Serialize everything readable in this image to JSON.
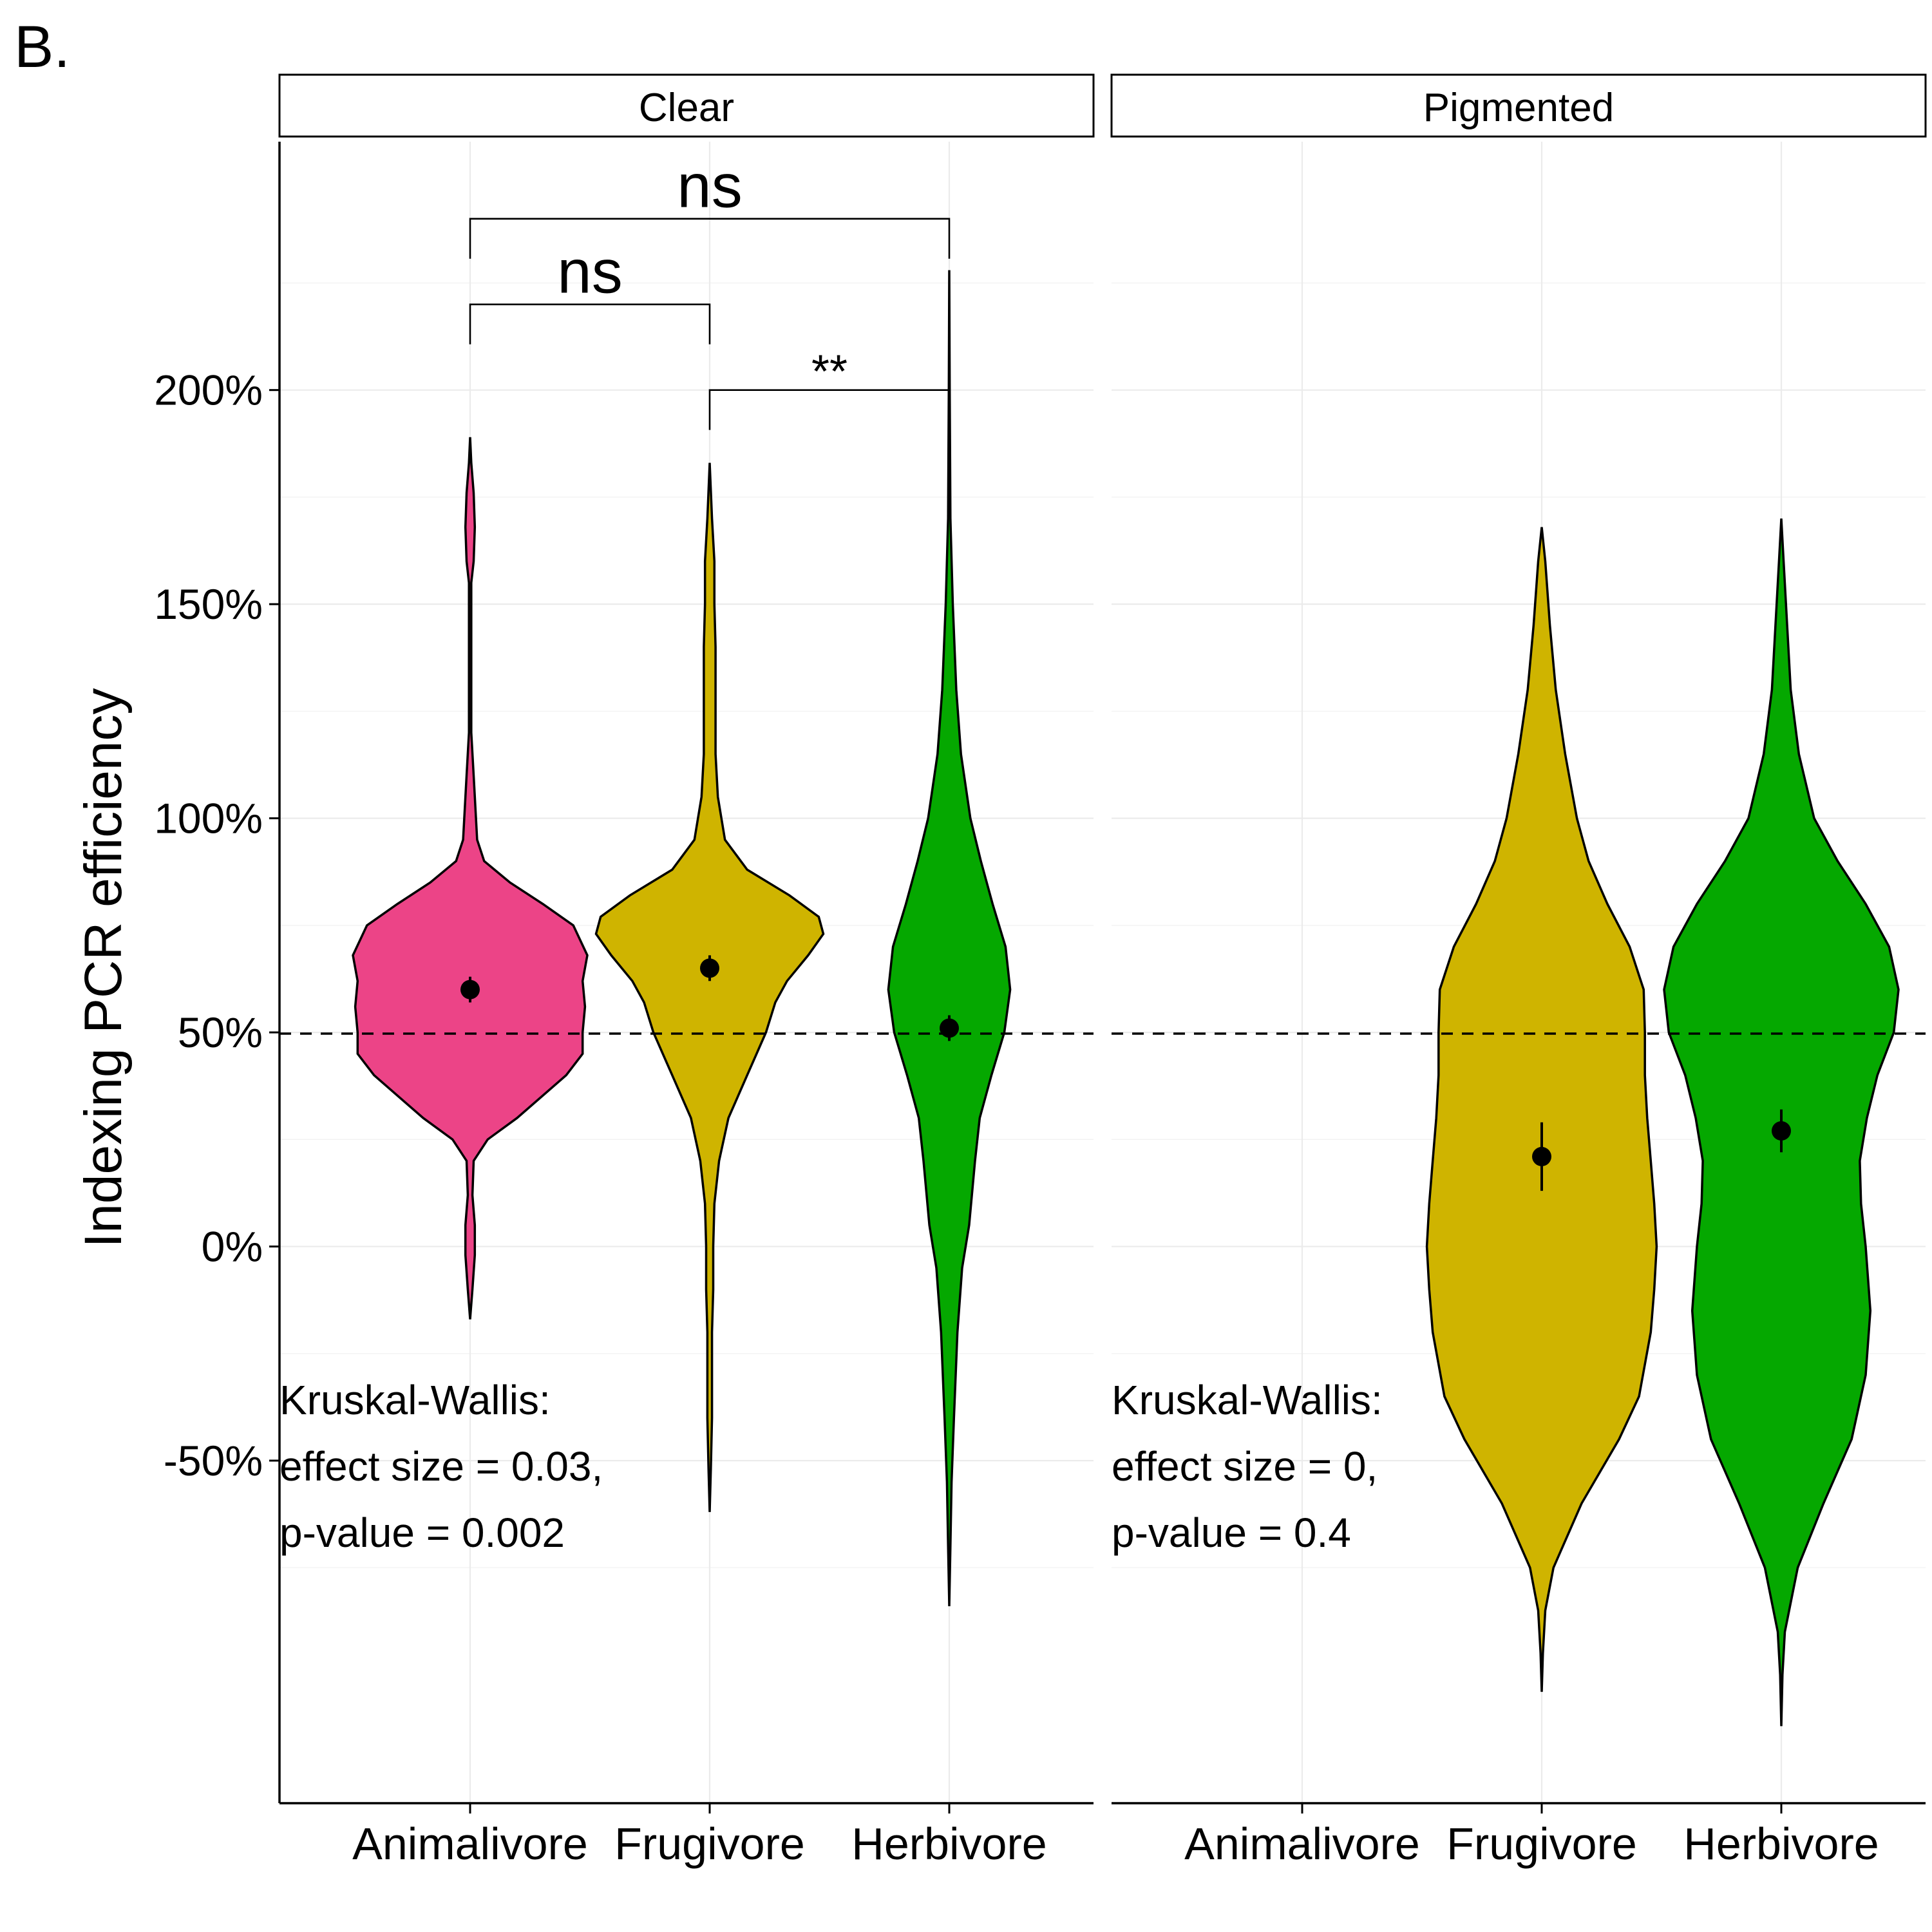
{
  "panel_label": "B.",
  "colors": {
    "Animalivore": "#EC4487",
    "Frugivore": "#CFB400",
    "Herbivore": "#05A800",
    "reference_line": "#000000"
  },
  "chart_data": {
    "type": "violin",
    "ylabel": "Indexing PCR efficiency",
    "xlabel": "",
    "y_unit": "%",
    "yticks": [
      -50,
      0,
      50,
      100,
      150,
      200
    ],
    "ytick_labels": [
      "-50%",
      "0%",
      "50%",
      "100%",
      "150%",
      "200%"
    ],
    "ylim": [
      -130,
      258
    ],
    "reference_line_y": 50,
    "grid": true,
    "categories": [
      "Animalivore",
      "Frugivore",
      "Herbivore"
    ],
    "facets": [
      {
        "strip": "Clear",
        "stats": [
          "Kruskal-Wallis:",
          "effect size = 0.03,",
          "p-value = 0.002"
        ],
        "comparisons": [
          {
            "from": "Animalivore",
            "to": "Frugivore",
            "label": "ns",
            "y": 220
          },
          {
            "from": "Frugivore",
            "to": "Herbivore",
            "label": "**",
            "y": 200
          },
          {
            "from": "Animalivore",
            "to": "Herbivore",
            "label": "ns",
            "y": 240
          }
        ],
        "violins": [
          {
            "group": "Animalivore",
            "mean": 60,
            "ci": [
              57,
              63
            ],
            "profile": [
              [
                -17,
                0
              ],
              [
                -10,
                0.02
              ],
              [
                -2,
                0.04
              ],
              [
                5,
                0.04
              ],
              [
                12,
                0.02
              ],
              [
                20,
                0.03
              ],
              [
                25,
                0.15
              ],
              [
                30,
                0.4
              ],
              [
                40,
                0.82
              ],
              [
                45,
                0.96
              ],
              [
                50,
                0.96
              ],
              [
                56,
                0.98
              ],
              [
                62,
                0.96
              ],
              [
                68,
                1.0
              ],
              [
                75,
                0.88
              ],
              [
                80,
                0.62
              ],
              [
                85,
                0.34
              ],
              [
                90,
                0.12
              ],
              [
                95,
                0.06
              ],
              [
                100,
                0.05
              ],
              [
                110,
                0.03
              ],
              [
                120,
                0.01
              ],
              [
                140,
                0.01
              ],
              [
                155,
                0.01
              ],
              [
                160,
                0.03
              ],
              [
                168,
                0.04
              ],
              [
                176,
                0.03
              ],
              [
                183,
                0.01
              ],
              [
                189,
                0
              ]
            ]
          },
          {
            "group": "Frugivore",
            "mean": 65,
            "ci": [
              62,
              68
            ],
            "profile": [
              [
                -62,
                0
              ],
              [
                -52,
                0.01
              ],
              [
                -40,
                0.02
              ],
              [
                -30,
                0.02
              ],
              [
                -20,
                0.02
              ],
              [
                -10,
                0.03
              ],
              [
                0,
                0.03
              ],
              [
                10,
                0.04
              ],
              [
                20,
                0.08
              ],
              [
                30,
                0.16
              ],
              [
                40,
                0.32
              ],
              [
                50,
                0.48
              ],
              [
                57,
                0.56
              ],
              [
                62,
                0.66
              ],
              [
                68,
                0.84
              ],
              [
                73,
                0.97
              ],
              [
                77,
                0.93
              ],
              [
                82,
                0.68
              ],
              [
                88,
                0.32
              ],
              [
                95,
                0.13
              ],
              [
                105,
                0.07
              ],
              [
                115,
                0.05
              ],
              [
                125,
                0.05
              ],
              [
                140,
                0.05
              ],
              [
                150,
                0.04
              ],
              [
                160,
                0.04
              ],
              [
                170,
                0.02
              ],
              [
                183,
                0
              ]
            ]
          },
          {
            "group": "Herbivore",
            "mean": 51,
            "ci": [
              48,
              54
            ],
            "profile": [
              [
                -84,
                0
              ],
              [
                -70,
                0.01
              ],
              [
                -55,
                0.02
              ],
              [
                -40,
                0.04
              ],
              [
                -20,
                0.07
              ],
              [
                -5,
                0.11
              ],
              [
                5,
                0.17
              ],
              [
                20,
                0.22
              ],
              [
                30,
                0.26
              ],
              [
                40,
                0.36
              ],
              [
                50,
                0.47
              ],
              [
                60,
                0.52
              ],
              [
                70,
                0.48
              ],
              [
                80,
                0.37
              ],
              [
                90,
                0.27
              ],
              [
                100,
                0.18
              ],
              [
                115,
                0.1
              ],
              [
                130,
                0.06
              ],
              [
                150,
                0.03
              ],
              [
                170,
                0.01
              ],
              [
                200,
                0.004
              ],
              [
                228,
                0
              ]
            ]
          }
        ]
      },
      {
        "strip": "Pigmented",
        "stats": [
          "Kruskal-Wallis:",
          "effect size = 0,",
          "p-value = 0.4"
        ],
        "comparisons": [],
        "violins": [
          {
            "group": "Frugivore",
            "mean": 21,
            "ci": [
              13,
              29
            ],
            "profile": [
              [
                -104,
                0
              ],
              [
                -95,
                0.01
              ],
              [
                -85,
                0.03
              ],
              [
                -75,
                0.1
              ],
              [
                -60,
                0.34
              ],
              [
                -45,
                0.66
              ],
              [
                -35,
                0.83
              ],
              [
                -20,
                0.93
              ],
              [
                -10,
                0.96
              ],
              [
                0,
                0.98
              ],
              [
                10,
                0.96
              ],
              [
                20,
                0.93
              ],
              [
                30,
                0.9
              ],
              [
                40,
                0.88
              ],
              [
                50,
                0.88
              ],
              [
                60,
                0.87
              ],
              [
                70,
                0.75
              ],
              [
                80,
                0.56
              ],
              [
                90,
                0.4
              ],
              [
                100,
                0.3
              ],
              [
                115,
                0.2
              ],
              [
                130,
                0.12
              ],
              [
                145,
                0.07
              ],
              [
                160,
                0.03
              ],
              [
                168,
                0
              ]
            ]
          },
          {
            "group": "Herbivore",
            "mean": 27,
            "ci": [
              22,
              32
            ],
            "profile": [
              [
                -112,
                0
              ],
              [
                -100,
                0.01
              ],
              [
                -90,
                0.03
              ],
              [
                -75,
                0.14
              ],
              [
                -60,
                0.36
              ],
              [
                -45,
                0.6
              ],
              [
                -30,
                0.72
              ],
              [
                -15,
                0.76
              ],
              [
                0,
                0.72
              ],
              [
                10,
                0.68
              ],
              [
                20,
                0.67
              ],
              [
                30,
                0.73
              ],
              [
                40,
                0.82
              ],
              [
                50,
                0.96
              ],
              [
                60,
                1.0
              ],
              [
                70,
                0.92
              ],
              [
                80,
                0.72
              ],
              [
                90,
                0.48
              ],
              [
                100,
                0.28
              ],
              [
                115,
                0.15
              ],
              [
                130,
                0.08
              ],
              [
                145,
                0.05
              ],
              [
                160,
                0.02
              ],
              [
                170,
                0
              ]
            ]
          }
        ]
      }
    ]
  }
}
